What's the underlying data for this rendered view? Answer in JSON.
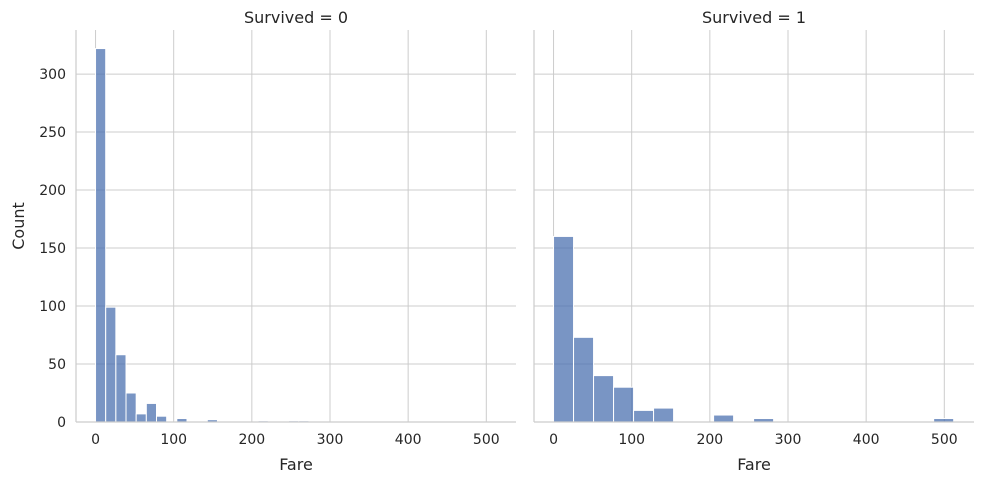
{
  "chart_data": [
    {
      "type": "bar",
      "title": "Survived = 0",
      "xlabel": "Fare",
      "ylabel": "Count",
      "xlim": [
        -25,
        538
      ],
      "ylim": [
        0,
        338
      ],
      "xticks": [
        "0",
        "100",
        "200",
        "300",
        "400",
        "500"
      ],
      "yticks": [
        "0",
        "50",
        "100",
        "150",
        "200",
        "250",
        "300"
      ],
      "grid": true,
      "color": "#4c72b0",
      "bins": [
        {
          "x0": 0,
          "x1": 13,
          "count": 322
        },
        {
          "x0": 13,
          "x1": 26,
          "count": 99
        },
        {
          "x0": 26,
          "x1": 39,
          "count": 58
        },
        {
          "x0": 39,
          "x1": 52,
          "count": 25
        },
        {
          "x0": 52,
          "x1": 65,
          "count": 7
        },
        {
          "x0": 65,
          "x1": 78,
          "count": 16
        },
        {
          "x0": 78,
          "x1": 91,
          "count": 5
        },
        {
          "x0": 104,
          "x1": 117,
          "count": 3
        },
        {
          "x0": 143,
          "x1": 156,
          "count": 2
        },
        {
          "x0": 208,
          "x1": 221,
          "count": 1
        },
        {
          "x0": 247,
          "x1": 260,
          "count": 1
        },
        {
          "x0": 260,
          "x1": 273,
          "count": 1
        }
      ]
    },
    {
      "type": "bar",
      "title": "Survived = 1",
      "xlabel": "Fare",
      "ylabel": "",
      "xlim": [
        -25,
        538
      ],
      "ylim": [
        0,
        338
      ],
      "xticks": [
        "0",
        "100",
        "200",
        "300",
        "400",
        "500"
      ],
      "yticks": [],
      "grid": true,
      "color": "#4c72b0",
      "bins": [
        {
          "x0": 0,
          "x1": 25.6,
          "count": 160
        },
        {
          "x0": 25.6,
          "x1": 51.2,
          "count": 73
        },
        {
          "x0": 51.2,
          "x1": 76.8,
          "count": 40
        },
        {
          "x0": 76.8,
          "x1": 102.4,
          "count": 30
        },
        {
          "x0": 102.4,
          "x1": 128,
          "count": 10
        },
        {
          "x0": 128,
          "x1": 153.6,
          "count": 12
        },
        {
          "x0": 204.8,
          "x1": 230.4,
          "count": 6
        },
        {
          "x0": 256,
          "x1": 281.6,
          "count": 3
        },
        {
          "x0": 486.4,
          "x1": 512,
          "count": 3
        }
      ]
    }
  ]
}
